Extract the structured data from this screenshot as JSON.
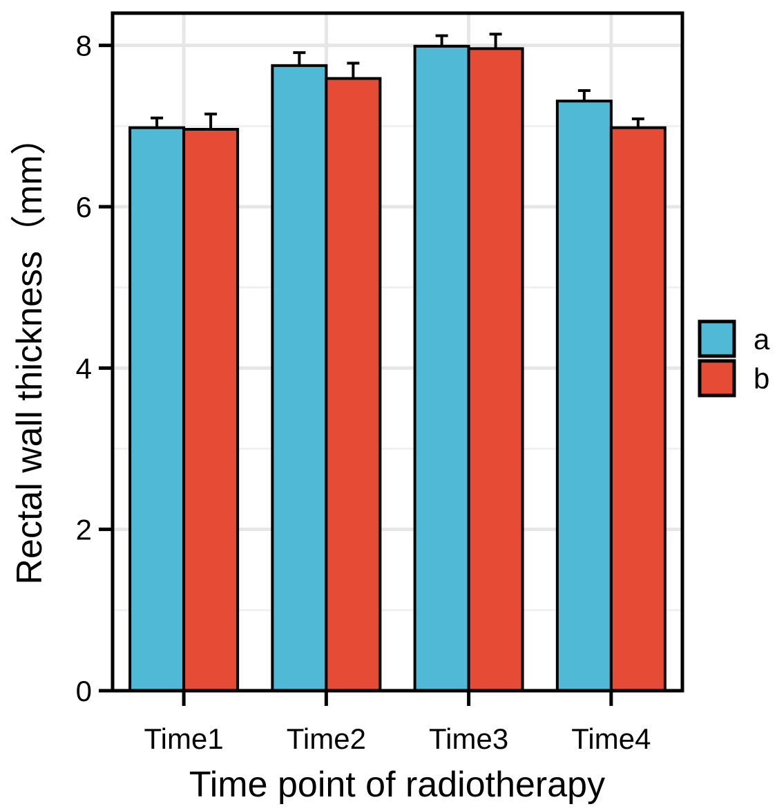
{
  "chart_data": {
    "type": "bar",
    "title": "",
    "xlabel": "Time point of radiotherapy",
    "ylabel": "Rectal wall thickness（mm）",
    "categories": [
      "Time1",
      "Time2",
      "Time3",
      "Time4"
    ],
    "series": [
      {
        "name": "a",
        "color": "#4FB9D6",
        "values": [
          6.98,
          7.75,
          7.99,
          7.31
        ],
        "errors": [
          0.12,
          0.16,
          0.13,
          0.13
        ]
      },
      {
        "name": "b",
        "color": "#E64B35",
        "values": [
          6.96,
          7.59,
          7.96,
          6.98
        ],
        "errors": [
          0.19,
          0.19,
          0.18,
          0.11
        ]
      }
    ],
    "ylim": [
      0,
      8.4
    ],
    "yticks": [
      "0",
      "2",
      "4",
      "6",
      "8"
    ],
    "grid": true,
    "legend_position": "right"
  }
}
